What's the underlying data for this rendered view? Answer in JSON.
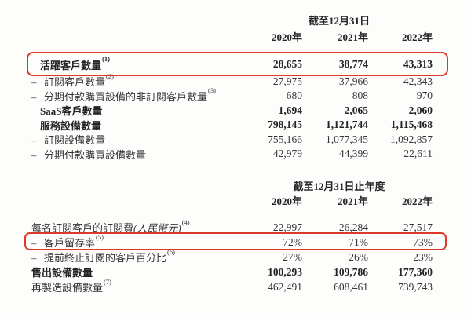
{
  "dash_char": "–",
  "highlight_color": "#dc392b",
  "table1": {
    "period_header": "截至12月31日",
    "years": [
      "2020年",
      "2021年",
      "2022年"
    ],
    "rows": [
      {
        "label": "活躍客戶數量",
        "sup": "(1)",
        "dash": false,
        "bold": true,
        "highlight": true,
        "values": [
          "28,655",
          "38,774",
          "43,313"
        ]
      },
      {
        "label": "訂閱客戶數量",
        "sup": "(2)",
        "dash": true,
        "bold": false,
        "highlight": false,
        "values": [
          "27,975",
          "37,966",
          "42,343"
        ]
      },
      {
        "label": "分期付款購買設備的非訂閱客戶數量",
        "sup": "(3)",
        "dash": true,
        "bold": false,
        "highlight": false,
        "values": [
          "680",
          "808",
          "970"
        ]
      },
      {
        "label": "SaaS客戶數量",
        "sup": "",
        "dash": false,
        "bold": true,
        "highlight": false,
        "values": [
          "1,694",
          "2,065",
          "2,060"
        ]
      },
      {
        "label": "服務設備數量",
        "sup": "",
        "dash": false,
        "bold": true,
        "highlight": false,
        "values": [
          "798,145",
          "1,121,744",
          "1,115,468"
        ]
      },
      {
        "label": "訂閱設備數量",
        "sup": "",
        "dash": true,
        "bold": false,
        "highlight": false,
        "values": [
          "755,166",
          "1,077,345",
          "1,092,857"
        ]
      },
      {
        "label": "分期付款購買設備數量",
        "sup": "",
        "dash": true,
        "bold": false,
        "highlight": false,
        "values": [
          "42,979",
          "44,399",
          "22,611"
        ]
      }
    ]
  },
  "table2": {
    "period_header": "截至12月31日止年度",
    "years": [
      "2020年",
      "2021年",
      "2022年"
    ],
    "rows": [
      {
        "label": "每名訂閱客戶的訂閱費",
        "label_italic": "(人民幣元)",
        "sup": "(4)",
        "dash": false,
        "bold": false,
        "highlight": false,
        "values": [
          "22,997",
          "26,284",
          "27,517"
        ]
      },
      {
        "label": "客戶留存率",
        "sup": "(5)",
        "dash": true,
        "bold": false,
        "highlight": true,
        "values": [
          "72%",
          "71%",
          "73%"
        ]
      },
      {
        "label": "提前終止訂閱的客戶百分比",
        "sup": "(6)",
        "dash": true,
        "bold": false,
        "highlight": false,
        "values": [
          "27%",
          "26%",
          "23%"
        ]
      },
      {
        "label": "售出設備數量",
        "sup": "",
        "dash": false,
        "bold": true,
        "highlight": false,
        "values": [
          "100,293",
          "109,786",
          "177,360"
        ]
      },
      {
        "label": "再製造設備數量",
        "sup": "(7)",
        "dash": false,
        "bold": false,
        "highlight": false,
        "values": [
          "462,491",
          "608,461",
          "739,743"
        ]
      }
    ]
  }
}
